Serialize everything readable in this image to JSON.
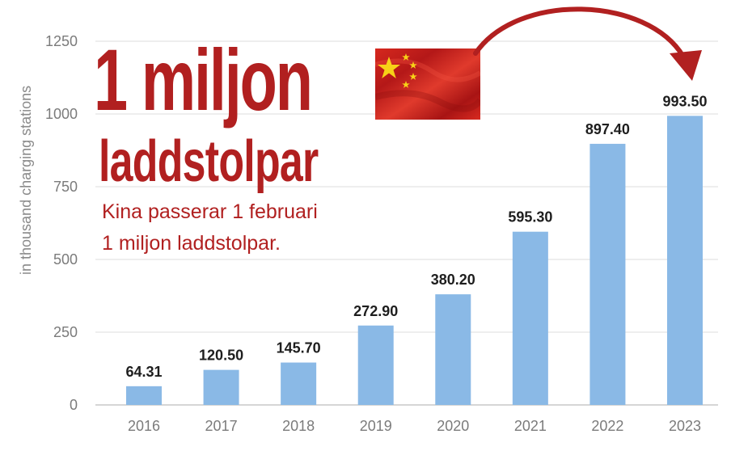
{
  "chart_data": {
    "type": "bar",
    "categories": [
      "2016",
      "2017",
      "2018",
      "2019",
      "2020",
      "2021",
      "2022",
      "2023"
    ],
    "values": [
      64.31,
      120.5,
      145.7,
      272.9,
      380.2,
      595.3,
      897.4,
      993.5
    ],
    "value_labels": [
      "64.31",
      "120.50",
      "145.70",
      "272.90",
      "380.20",
      "595.30",
      "897.40",
      "993.50"
    ],
    "ylabel": "in thousand charging stations",
    "ylim": [
      0,
      1250
    ],
    "yticks": [
      "0",
      "250",
      "500",
      "750",
      "1000",
      "1250"
    ],
    "grid": true,
    "bar_color": "#8ab9e6"
  },
  "overlay": {
    "headline_line1": "1 miljon",
    "headline_line2": "laddstolpar",
    "subtext_line1": "Kina passerar 1 februari",
    "subtext_line2": "1 miljon laddstolpar.",
    "accent_color": "#b12020",
    "flag_icon": "china-flag-icon",
    "arrow_icon": "curved-arrow-icon"
  }
}
